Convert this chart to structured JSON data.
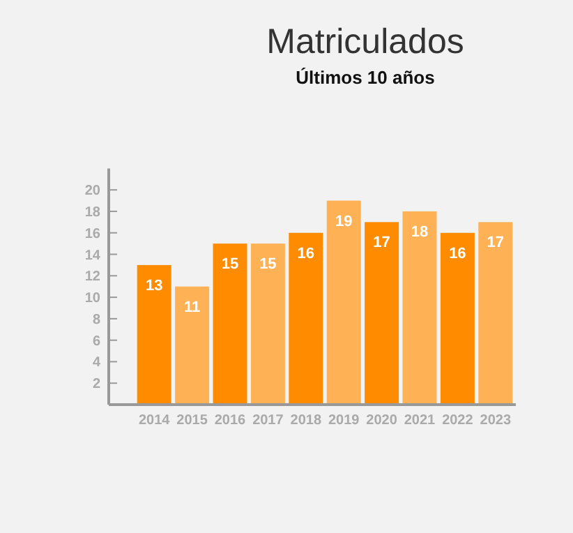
{
  "chart_data": {
    "type": "bar",
    "title": "Matriculados",
    "subtitle": "Últimos 10 años",
    "categories": [
      "2014",
      "2015",
      "2016",
      "2017",
      "2018",
      "2019",
      "2020",
      "2021",
      "2022",
      "2023"
    ],
    "values": [
      13,
      11,
      15,
      15,
      16,
      19,
      17,
      18,
      16,
      17
    ],
    "colors": [
      "#ff8c00",
      "#ffb155",
      "#ff8c00",
      "#ffb155",
      "#ff8c00",
      "#ffb155",
      "#ff8c00",
      "#ffb155",
      "#ff8c00",
      "#ffb155"
    ],
    "ylim": [
      0,
      22
    ],
    "yticks": [
      2,
      4,
      6,
      8,
      10,
      12,
      14,
      16,
      18,
      20
    ],
    "data_labels": true,
    "grid": false
  }
}
